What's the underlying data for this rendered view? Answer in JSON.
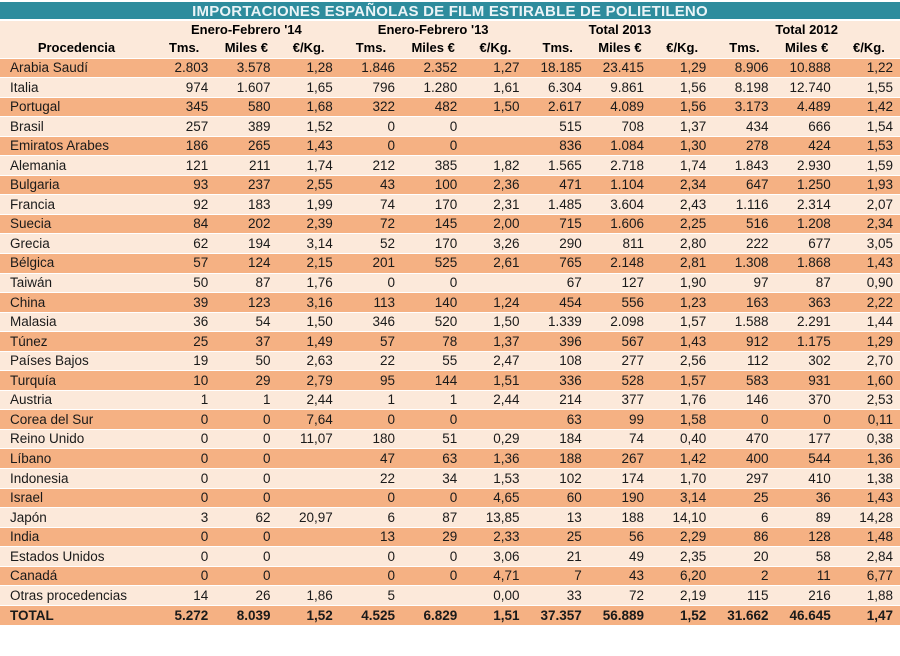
{
  "title": "IMPORTACIONES ESPAÑOLAS DE FILM ESTIRABLE DE POLIETILENO",
  "colors": {
    "title_bg": "#2E8C9D",
    "title_text": "#EAF4F7",
    "row_dark": "#F5B183",
    "row_light": "#FCE9DA",
    "header_bg": "#FCE9DA",
    "text": "#1A1A1A",
    "separator": "#FFFFFF"
  },
  "chart_data": {
    "type": "table",
    "title": "IMPORTACIONES ESPAÑOLAS DE FILM ESTIRABLE DE POLIETILENO",
    "row_header": "Procedencia",
    "column_groups": [
      "Enero-Febrero '14",
      "Enero-Febrero '13",
      "Total 2013",
      "Total 2012"
    ],
    "subcolumns": [
      "Tms.",
      "Miles €",
      "€/Kg."
    ],
    "rows": [
      {
        "name": "Arabia Saudí",
        "values": [
          "2.803",
          "3.578",
          "1,28",
          "1.846",
          "2.352",
          "1,27",
          "18.185",
          "23.415",
          "1,29",
          "8.906",
          "10.888",
          "1,22"
        ]
      },
      {
        "name": "Italia",
        "values": [
          "974",
          "1.607",
          "1,65",
          "796",
          "1.280",
          "1,61",
          "6.304",
          "9.861",
          "1,56",
          "8.198",
          "12.740",
          "1,55"
        ]
      },
      {
        "name": "Portugal",
        "values": [
          "345",
          "580",
          "1,68",
          "322",
          "482",
          "1,50",
          "2.617",
          "4.089",
          "1,56",
          "3.173",
          "4.489",
          "1,42"
        ]
      },
      {
        "name": "Brasil",
        "values": [
          "257",
          "389",
          "1,52",
          "0",
          "0",
          "",
          "515",
          "708",
          "1,37",
          "434",
          "666",
          "1,54"
        ]
      },
      {
        "name": "Emiratos Arabes",
        "values": [
          "186",
          "265",
          "1,43",
          "0",
          "0",
          "",
          "836",
          "1.084",
          "1,30",
          "278",
          "424",
          "1,53"
        ]
      },
      {
        "name": "Alemania",
        "values": [
          "121",
          "211",
          "1,74",
          "212",
          "385",
          "1,82",
          "1.565",
          "2.718",
          "1,74",
          "1.843",
          "2.930",
          "1,59"
        ]
      },
      {
        "name": "Bulgaria",
        "values": [
          "93",
          "237",
          "2,55",
          "43",
          "100",
          "2,36",
          "471",
          "1.104",
          "2,34",
          "647",
          "1.250",
          "1,93"
        ]
      },
      {
        "name": "Francia",
        "values": [
          "92",
          "183",
          "1,99",
          "74",
          "170",
          "2,31",
          "1.485",
          "3.604",
          "2,43",
          "1.116",
          "2.314",
          "2,07"
        ]
      },
      {
        "name": "Suecia",
        "values": [
          "84",
          "202",
          "2,39",
          "72",
          "145",
          "2,00",
          "715",
          "1.606",
          "2,25",
          "516",
          "1.208",
          "2,34"
        ]
      },
      {
        "name": "Grecia",
        "values": [
          "62",
          "194",
          "3,14",
          "52",
          "170",
          "3,26",
          "290",
          "811",
          "2,80",
          "222",
          "677",
          "3,05"
        ]
      },
      {
        "name": "Bélgica",
        "values": [
          "57",
          "124",
          "2,15",
          "201",
          "525",
          "2,61",
          "765",
          "2.148",
          "2,81",
          "1.308",
          "1.868",
          "1,43"
        ]
      },
      {
        "name": "Taiwán",
        "values": [
          "50",
          "87",
          "1,76",
          "0",
          "0",
          "",
          "67",
          "127",
          "1,90",
          "97",
          "87",
          "0,90"
        ]
      },
      {
        "name": "China",
        "values": [
          "39",
          "123",
          "3,16",
          "113",
          "140",
          "1,24",
          "454",
          "556",
          "1,23",
          "163",
          "363",
          "2,22"
        ]
      },
      {
        "name": "Malasia",
        "values": [
          "36",
          "54",
          "1,50",
          "346",
          "520",
          "1,50",
          "1.339",
          "2.098",
          "1,57",
          "1.588",
          "2.291",
          "1,44"
        ]
      },
      {
        "name": "Túnez",
        "values": [
          "25",
          "37",
          "1,49",
          "57",
          "78",
          "1,37",
          "396",
          "567",
          "1,43",
          "912",
          "1.175",
          "1,29"
        ]
      },
      {
        "name": "Países Bajos",
        "values": [
          "19",
          "50",
          "2,63",
          "22",
          "55",
          "2,47",
          "108",
          "277",
          "2,56",
          "112",
          "302",
          "2,70"
        ]
      },
      {
        "name": "Turquía",
        "values": [
          "10",
          "29",
          "2,79",
          "95",
          "144",
          "1,51",
          "336",
          "528",
          "1,57",
          "583",
          "931",
          "1,60"
        ]
      },
      {
        "name": "Austria",
        "values": [
          "1",
          "1",
          "2,44",
          "1",
          "1",
          "2,44",
          "214",
          "377",
          "1,76",
          "146",
          "370",
          "2,53"
        ]
      },
      {
        "name": "Corea del Sur",
        "values": [
          "0",
          "0",
          "7,64",
          "0",
          "0",
          "",
          "63",
          "99",
          "1,58",
          "0",
          "0",
          "0,11"
        ]
      },
      {
        "name": "Reino Unido",
        "values": [
          "0",
          "0",
          "11,07",
          "180",
          "51",
          "0,29",
          "184",
          "74",
          "0,40",
          "470",
          "177",
          "0,38"
        ]
      },
      {
        "name": "Líbano",
        "values": [
          "0",
          "0",
          "",
          "47",
          "63",
          "1,36",
          "188",
          "267",
          "1,42",
          "400",
          "544",
          "1,36"
        ]
      },
      {
        "name": "Indonesia",
        "values": [
          "0",
          "0",
          "",
          "22",
          "34",
          "1,53",
          "102",
          "174",
          "1,70",
          "297",
          "410",
          "1,38"
        ]
      },
      {
        "name": "Israel",
        "values": [
          "0",
          "0",
          "",
          "0",
          "0",
          "4,65",
          "60",
          "190",
          "3,14",
          "25",
          "36",
          "1,43"
        ]
      },
      {
        "name": "Japón",
        "values": [
          "3",
          "62",
          "20,97",
          "6",
          "87",
          "13,85",
          "13",
          "188",
          "14,10",
          "6",
          "89",
          "14,28"
        ]
      },
      {
        "name": "India",
        "values": [
          "0",
          "0",
          "",
          "13",
          "29",
          "2,33",
          "25",
          "56",
          "2,29",
          "86",
          "128",
          "1,48"
        ]
      },
      {
        "name": "Estados Unidos",
        "values": [
          "0",
          "0",
          "",
          "0",
          "0",
          "3,06",
          "21",
          "49",
          "2,35",
          "20",
          "58",
          "2,84"
        ]
      },
      {
        "name": "Canadá",
        "values": [
          "0",
          "0",
          "",
          "0",
          "0",
          "4,71",
          "7",
          "43",
          "6,20",
          "2",
          "11",
          "6,77"
        ]
      },
      {
        "name": "Otras procedencias",
        "values": [
          "14",
          "26",
          "1,86",
          "5",
          "",
          "0,00",
          "33",
          "72",
          "2,19",
          "115",
          "216",
          "1,88"
        ]
      }
    ],
    "total_row": {
      "name": "TOTAL",
      "values": [
        "5.272",
        "8.039",
        "1,52",
        "4.525",
        "6.829",
        "1,51",
        "37.357",
        "56.889",
        "1,52",
        "31.662",
        "46.645",
        "1,47"
      ]
    }
  }
}
